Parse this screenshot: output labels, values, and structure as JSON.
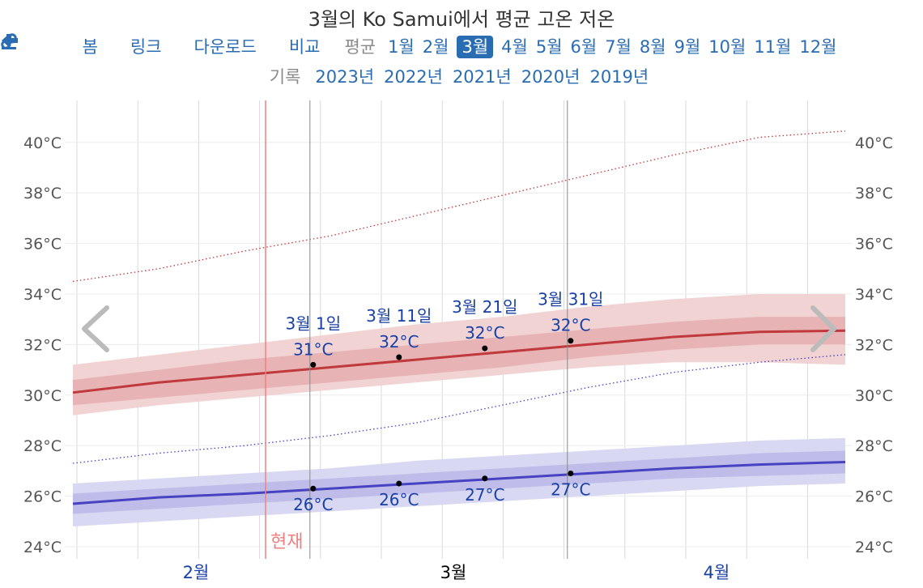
{
  "header": {
    "title": "3월의 Ko Samui에서 평균 고온 저온"
  },
  "nav": {
    "back": "봄",
    "link": "링크",
    "download": "다운로드",
    "compare": "비교",
    "average_label": "평균",
    "months": [
      "1월",
      "2월",
      "3월",
      "4월",
      "5월",
      "6월",
      "7월",
      "8월",
      "9월",
      "10월",
      "11월",
      "12월"
    ],
    "active_month_index": 2
  },
  "records": {
    "label": "기록",
    "years": [
      "2023년",
      "2022년",
      "2021년",
      "2020년",
      "2019년"
    ]
  },
  "colors": {
    "high": "#c0393c",
    "high_band_inner": "#e3a5a7",
    "high_band_outer": "#f2d3d4",
    "low": "#4642c2",
    "low_band_inner": "#b3b1e6",
    "low_band_outer": "#d9d8f3",
    "now": "#f08080",
    "label": "#1840a6"
  },
  "chart_data": {
    "type": "line",
    "ylim": [
      23.5,
      41.7
    ],
    "y_ticks": [
      24,
      26,
      28,
      30,
      32,
      34,
      36,
      38,
      40
    ],
    "y_tick_labels": [
      "24°C",
      "26°C",
      "28°C",
      "30°C",
      "32°C",
      "34°C",
      "36°C",
      "38°C",
      "40°C"
    ],
    "x_month_labels": [
      "2월",
      "3월",
      "4월"
    ],
    "x_days": [
      0,
      10,
      20,
      30,
      40,
      50,
      60,
      70,
      80,
      90
    ],
    "now_label": "현재",
    "now_day": 21,
    "series": [
      {
        "key": "high_avg",
        "values": [
          30.1,
          30.5,
          30.8,
          31.1,
          31.4,
          31.7,
          32.0,
          32.3,
          32.5,
          32.55
        ]
      },
      {
        "key": "high_band_inner",
        "lower": [
          29.6,
          29.9,
          30.2,
          30.5,
          30.8,
          31.1,
          31.5,
          31.8,
          32.0,
          32.0
        ],
        "upper": [
          30.6,
          31.0,
          31.4,
          31.7,
          32.0,
          32.3,
          32.6,
          32.9,
          33.1,
          33.1
        ]
      },
      {
        "key": "high_band_outer",
        "lower": [
          29.2,
          29.6,
          29.9,
          30.2,
          30.5,
          30.8,
          31.1,
          31.3,
          31.3,
          31.2
        ],
        "upper": [
          31.2,
          31.6,
          32.0,
          32.4,
          32.8,
          33.1,
          33.5,
          33.8,
          34.0,
          34.0
        ]
      },
      {
        "key": "high_record",
        "values": [
          34.5,
          35.0,
          35.7,
          36.3,
          37.1,
          37.9,
          38.7,
          39.5,
          40.2,
          40.45
        ]
      },
      {
        "key": "low_avg",
        "values": [
          25.7,
          25.95,
          26.1,
          26.3,
          26.5,
          26.7,
          26.9,
          27.1,
          27.25,
          27.35
        ]
      },
      {
        "key": "low_band_inner",
        "lower": [
          25.3,
          25.5,
          25.7,
          25.9,
          26.1,
          26.3,
          26.5,
          26.7,
          26.8,
          26.9
        ],
        "upper": [
          26.1,
          26.3,
          26.5,
          26.7,
          26.9,
          27.1,
          27.3,
          27.5,
          27.7,
          27.8
        ]
      },
      {
        "key": "low_band_outer",
        "lower": [
          24.8,
          25.0,
          25.2,
          25.4,
          25.6,
          25.8,
          26.0,
          26.2,
          26.4,
          26.5
        ],
        "upper": [
          26.5,
          26.7,
          26.9,
          27.1,
          27.4,
          27.6,
          27.8,
          28.0,
          28.2,
          28.3
        ]
      },
      {
        "key": "low_record",
        "values": [
          27.3,
          27.7,
          28.0,
          28.4,
          28.9,
          29.6,
          30.3,
          30.9,
          31.3,
          31.6
        ]
      }
    ],
    "markers": [
      {
        "date": "3월 1일",
        "day": 28,
        "high": 31.2,
        "high_label": "31°C",
        "low": 26.3,
        "low_label": "26°C"
      },
      {
        "date": "3월 11일",
        "day": 38,
        "high": 31.5,
        "high_label": "32°C",
        "low": 26.5,
        "low_label": "26°C"
      },
      {
        "date": "3월 21일",
        "day": 48,
        "high": 31.85,
        "high_label": "32°C",
        "low": 26.7,
        "low_label": "27°C"
      },
      {
        "date": "3월 31일",
        "day": 58,
        "high": 32.15,
        "high_label": "32°C",
        "low": 26.9,
        "low_label": "27°C"
      }
    ]
  }
}
